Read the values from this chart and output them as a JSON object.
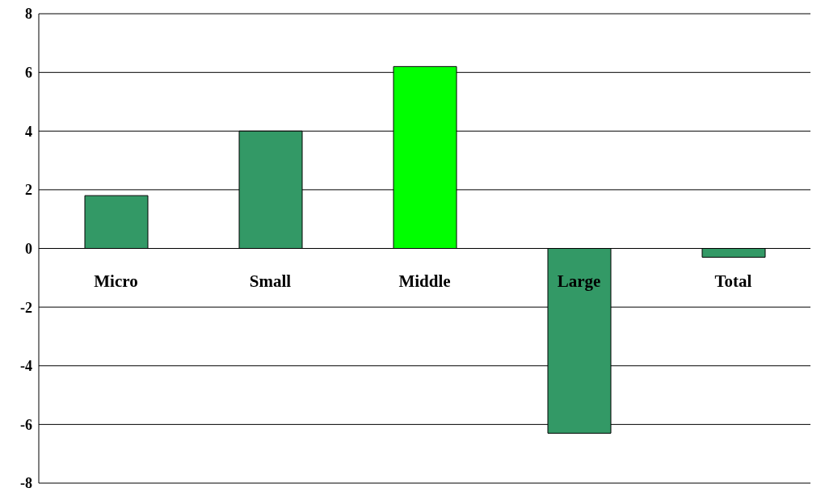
{
  "chart_data": {
    "type": "bar",
    "categories": [
      "Micro",
      "Small",
      "Middle",
      "Large",
      "Total"
    ],
    "values": [
      1.8,
      4.0,
      6.2,
      -6.3,
      -0.3
    ],
    "colors": [
      "#339966",
      "#339966",
      "#00ff00",
      "#339966",
      "#339966"
    ],
    "ylim": [
      -8,
      8
    ],
    "yticks": [
      -8,
      -6,
      -4,
      -2,
      0,
      2,
      4,
      6,
      8
    ],
    "grid": "y"
  }
}
